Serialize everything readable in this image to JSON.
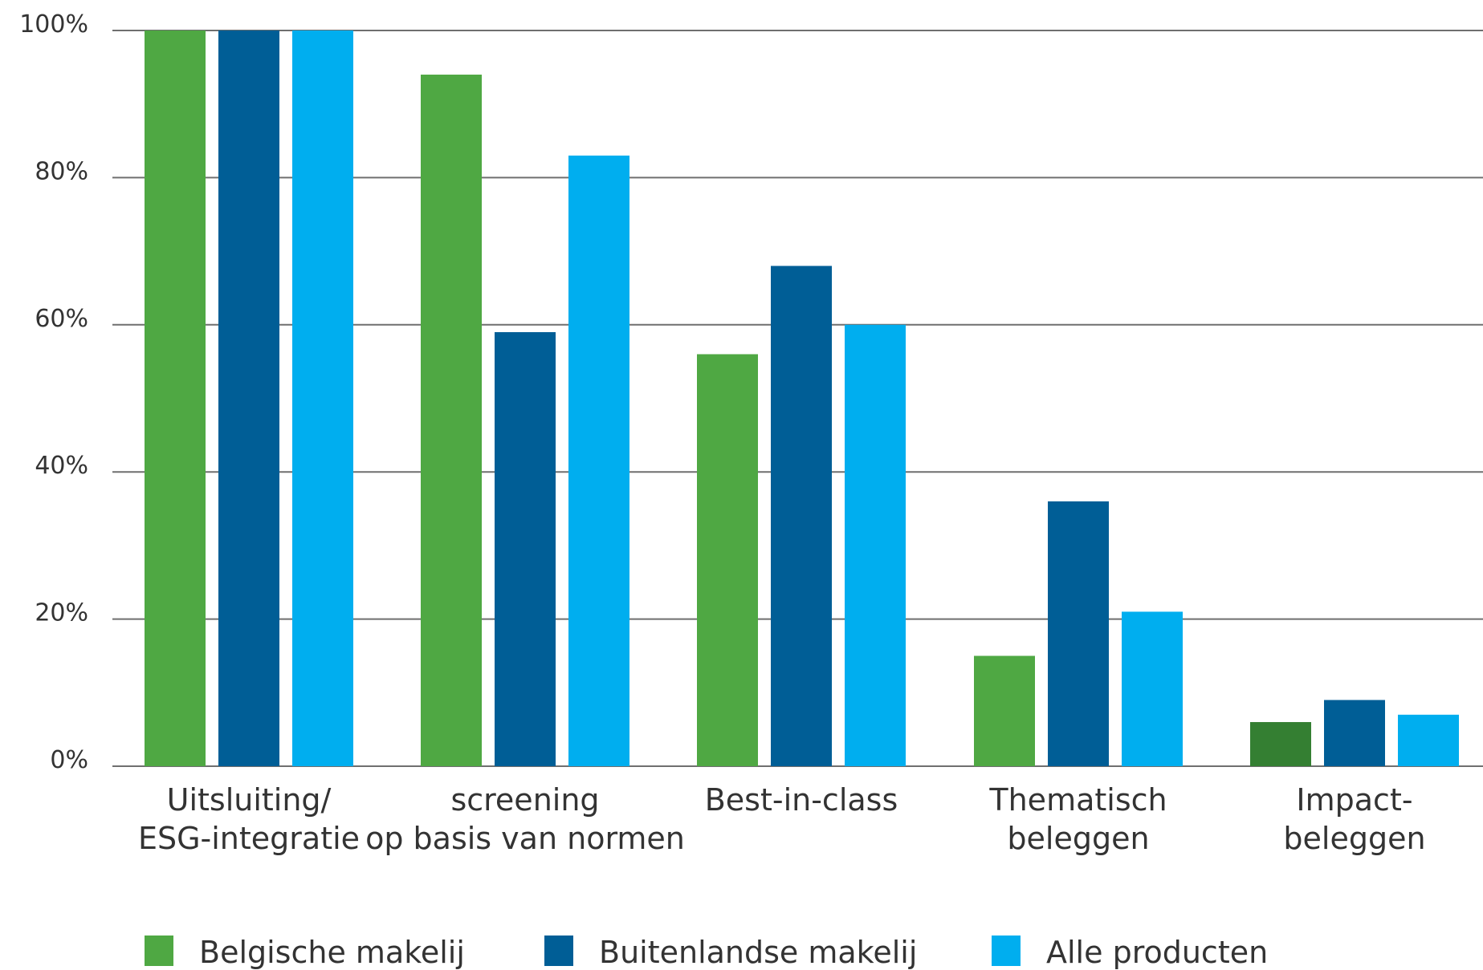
{
  "chart_data": {
    "type": "bar",
    "title": "",
    "xlabel": "",
    "ylabel": "",
    "ylim": [
      0,
      100
    ],
    "yticks": [
      {
        "value": 0,
        "label": "0%"
      },
      {
        "value": 20,
        "label": "20%"
      },
      {
        "value": 40,
        "label": "40%"
      },
      {
        "value": 60,
        "label": "60%"
      },
      {
        "value": 80,
        "label": "80%"
      },
      {
        "value": 100,
        "label": "100%"
      }
    ],
    "grid": true,
    "legend_position": "bottom",
    "categories": [
      [
        "Uitsluiting/",
        "ESG-integratie"
      ],
      [
        "screening",
        "op basis van normen"
      ],
      [
        "Best-in-class"
      ],
      [
        "Thematisch",
        "beleggen"
      ],
      [
        "Impact-",
        "beleggen"
      ]
    ],
    "series": [
      {
        "name": "Belgische makelij",
        "color": "#4fa843",
        "values": [
          100,
          94,
          56,
          15,
          6
        ]
      },
      {
        "name": "Buitenlandse makelij",
        "color": "#005e96",
        "values": [
          100,
          59,
          68,
          36,
          9
        ]
      },
      {
        "name": "Alle producten",
        "color": "#00aeef",
        "values": [
          100,
          83,
          60,
          21,
          7
        ]
      }
    ],
    "bar_overrides": [
      {
        "series": 0,
        "category": 4,
        "color": "#347f32"
      }
    ]
  }
}
